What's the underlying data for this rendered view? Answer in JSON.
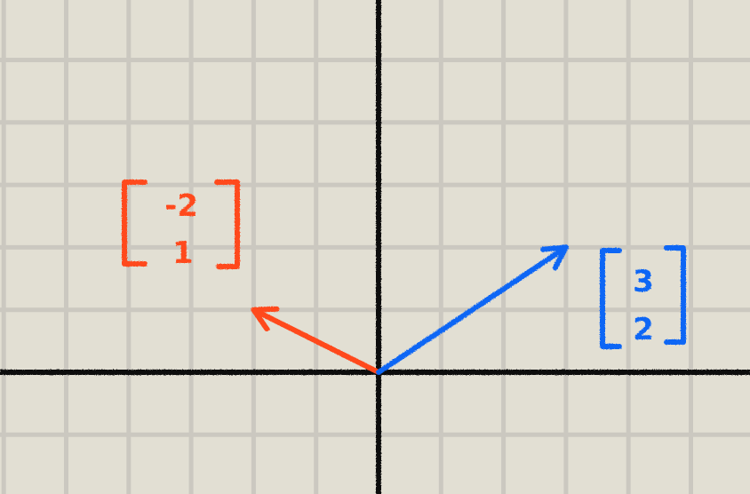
{
  "diagram": {
    "colors": {
      "background": "#e2dfd3",
      "grid": "#cbc8c0",
      "axis": "#111111"
    },
    "vectors": [
      {
        "components": [
          -2,
          1
        ],
        "display": [
          "-2",
          "1"
        ],
        "color": "#ff4a1c"
      },
      {
        "components": [
          3,
          2
        ],
        "display": [
          "3",
          "2"
        ],
        "color": "#1166f5"
      }
    ]
  }
}
